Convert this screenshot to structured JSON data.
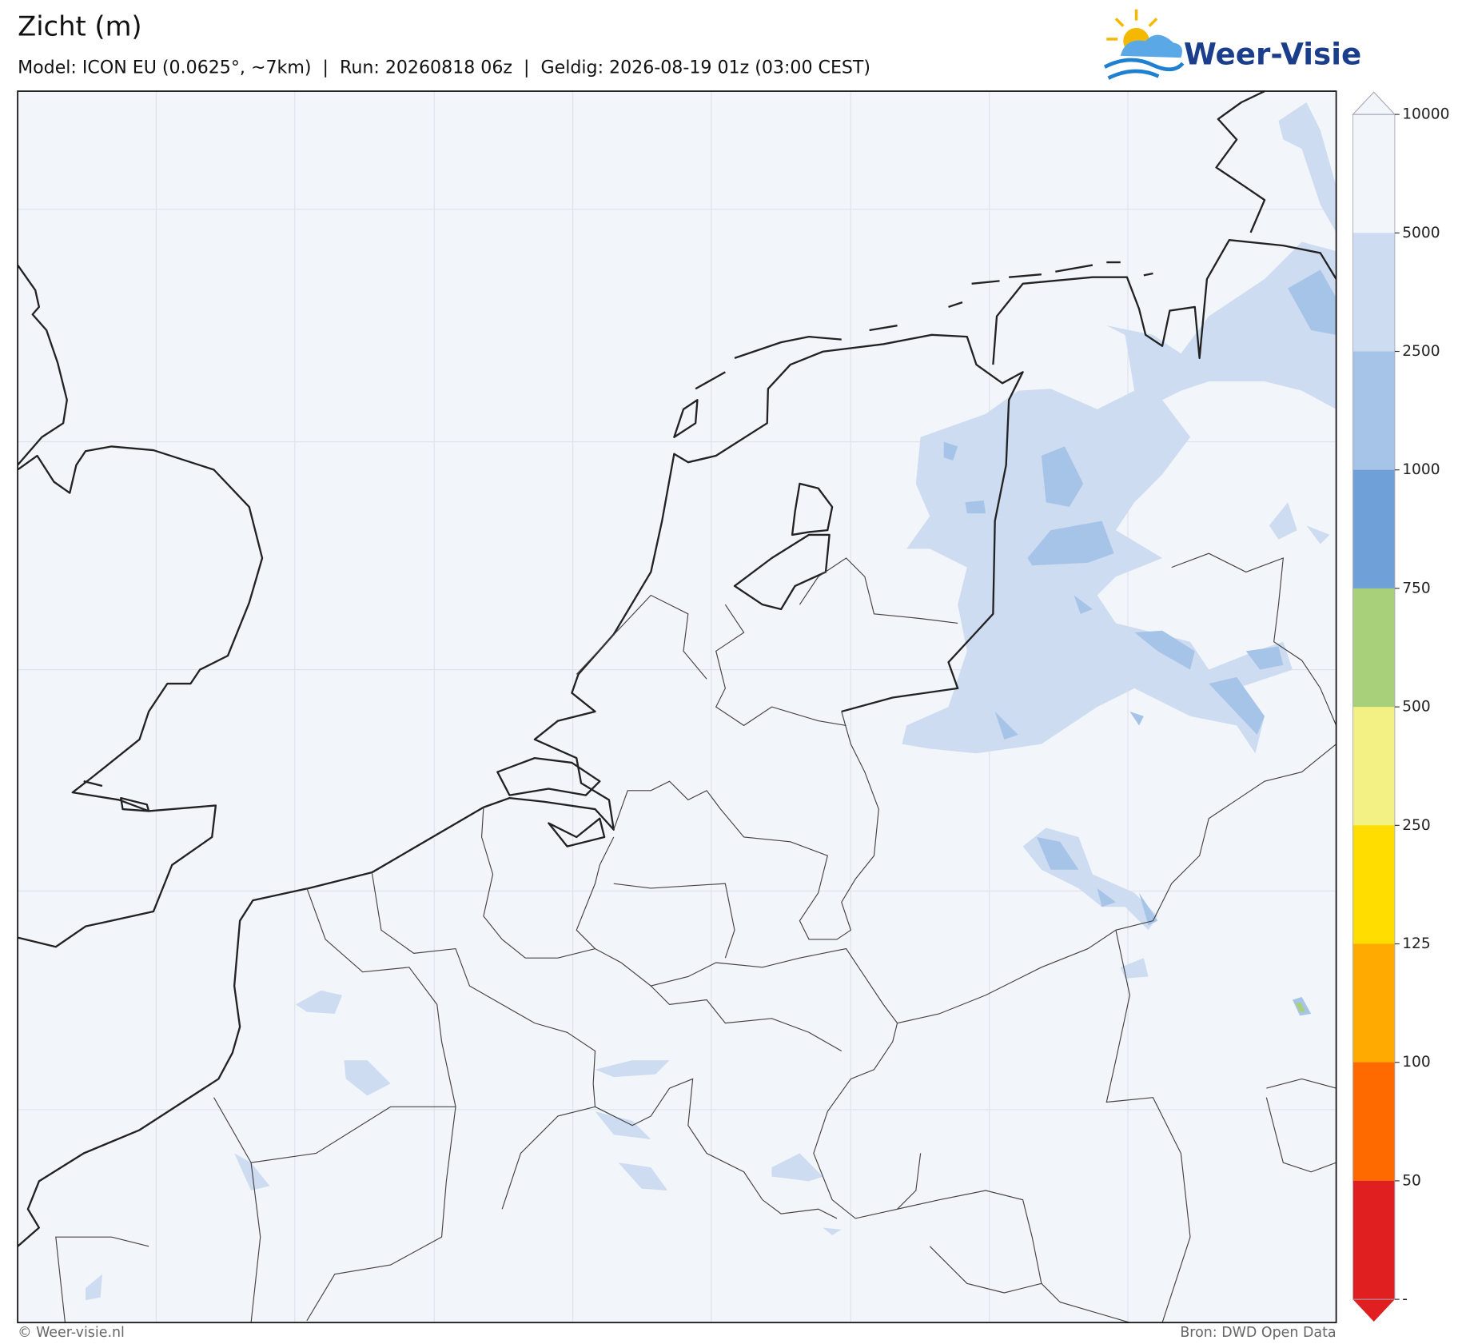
{
  "title": "Zicht (m)",
  "subtitle": "Model: ICON EU (0.0625°, ~7km)  |  Run: 20260818 06z  |  Geldig: 2026-08-19 01z (03:00 CEST)",
  "logo": "Weer-Visie",
  "colorbar": {
    "ticks": [
      10000,
      5000,
      2500,
      1000,
      750,
      500,
      250,
      125,
      100,
      50
    ],
    "bottom_label": "-",
    "colors": [
      "#f2f5fa",
      "#cddcf0",
      "#a6c4e8",
      "#6fa0d8",
      "#a8d07a",
      "#f4f184",
      "#ffdd00",
      "#ffaa00",
      "#ff6a00",
      "#e02020"
    ]
  },
  "footer": {
    "left": "© Weer-visie.nl",
    "right": "Bron: DWD Open Data"
  }
}
